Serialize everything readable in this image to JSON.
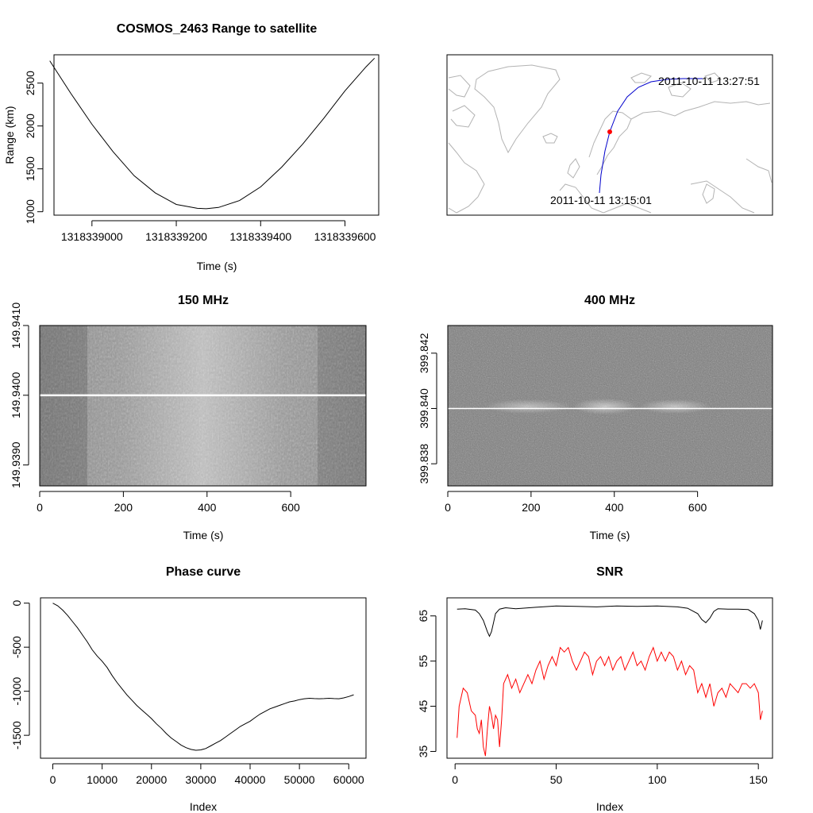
{
  "chart_data": [
    {
      "id": "range",
      "type": "line",
      "title": "COSMOS_2463 Range to satellite",
      "xlabel": "Time (s)",
      "ylabel": "Range (km)",
      "xlim": [
        1318338910,
        1318339680
      ],
      "ylim": [
        960,
        2830
      ],
      "x_ticks": [
        1318339000,
        1318339200,
        1318339400,
        1318339600
      ],
      "x_tick_labels": [
        "1318339000",
        "1318339200",
        "1318339400",
        "1318339600"
      ],
      "y_ticks": [
        1000,
        1500,
        2000,
        2500
      ],
      "y_tick_labels": [
        "1000",
        "1500",
        "2000",
        "2500"
      ],
      "series": [
        {
          "color": "#000000",
          "x": [
            1318338900,
            1318338950,
            1318339000,
            1318339050,
            1318339100,
            1318339150,
            1318339200,
            1318339250,
            1318339271,
            1318339300,
            1318339350,
            1318339400,
            1318339450,
            1318339500,
            1318339550,
            1318339600,
            1318339650,
            1318339670
          ],
          "y": [
            2760,
            2380,
            2020,
            1700,
            1420,
            1220,
            1085,
            1040,
            1035,
            1050,
            1130,
            1290,
            1520,
            1790,
            2090,
            2410,
            2690,
            2790
          ]
        }
      ]
    },
    {
      "id": "map",
      "type": "map",
      "annotations": [
        "2011-10-11 13:27:51",
        "2011-10-11 13:15:01"
      ],
      "track_color": "#0000cc",
      "marker_color": "#ff0000",
      "coast_color": "#b3b3b3"
    },
    {
      "id": "spec150",
      "type": "heatmap",
      "title": "150 MHz",
      "xlabel": "Time (s)",
      "ylabel": "",
      "xlim": [
        0,
        780
      ],
      "ylim": [
        149.9387,
        149.941
      ],
      "x_ticks": [
        0,
        200,
        400,
        600
      ],
      "x_tick_labels": [
        "0",
        "200",
        "400",
        "600"
      ],
      "y_ticks": [
        149.939,
        149.94,
        149.941
      ],
      "y_tick_labels": [
        "149.9390",
        "149.9400",
        "149.9410"
      ],
      "signal_freq": 149.94
    },
    {
      "id": "spec400",
      "type": "heatmap",
      "title": "400 MHz",
      "xlabel": "Time (s)",
      "ylabel": "",
      "xlim": [
        0,
        780
      ],
      "ylim": [
        399.8372,
        399.843
      ],
      "x_ticks": [
        0,
        200,
        400,
        600
      ],
      "x_tick_labels": [
        "0",
        "200",
        "400",
        "600"
      ],
      "y_ticks": [
        399.838,
        399.84,
        399.842
      ],
      "y_tick_labels": [
        "399.838",
        "399.840",
        "399.842"
      ],
      "signal_freq": 399.84
    },
    {
      "id": "phase",
      "type": "line",
      "title": "Phase curve",
      "xlabel": "Index",
      "ylabel": "",
      "xlim": [
        -2500,
        63500
      ],
      "ylim": [
        -1760,
        60
      ],
      "x_ticks": [
        0,
        10000,
        20000,
        30000,
        40000,
        50000,
        60000
      ],
      "x_tick_labels": [
        "0",
        "10000",
        "20000",
        "30000",
        "40000",
        "50000",
        "60000"
      ],
      "y_ticks": [
        0,
        -500,
        -1000,
        -1500
      ],
      "y_tick_labels": [
        "0",
        "-500",
        "-1000",
        "-1500"
      ],
      "series": [
        {
          "color": "#000000",
          "x": [
            0,
            1000,
            2000,
            3000,
            4000,
            5000,
            6000,
            7000,
            8000,
            9000,
            10000,
            11000,
            12000,
            13000,
            14000,
            15000,
            16000,
            17000,
            18000,
            19000,
            20000,
            21000,
            22000,
            23000,
            24000,
            25000,
            26000,
            27000,
            28000,
            29000,
            30000,
            31000,
            32000,
            33000,
            34000,
            35000,
            36000,
            37000,
            38000,
            39000,
            40000,
            41000,
            42000,
            43000,
            44000,
            45000,
            46000,
            47000,
            48000,
            49000,
            50000,
            51000,
            52000,
            53000,
            54000,
            55000,
            56000,
            57000,
            58000,
            59000,
            60000,
            61000
          ],
          "y": [
            0,
            -30,
            -80,
            -140,
            -210,
            -280,
            -360,
            -440,
            -530,
            -600,
            -660,
            -730,
            -820,
            -900,
            -970,
            -1040,
            -1100,
            -1160,
            -1210,
            -1260,
            -1310,
            -1370,
            -1420,
            -1480,
            -1530,
            -1570,
            -1610,
            -1640,
            -1660,
            -1670,
            -1665,
            -1650,
            -1620,
            -1590,
            -1560,
            -1520,
            -1480,
            -1440,
            -1400,
            -1370,
            -1340,
            -1300,
            -1260,
            -1230,
            -1200,
            -1180,
            -1160,
            -1140,
            -1120,
            -1110,
            -1095,
            -1085,
            -1080,
            -1083,
            -1085,
            -1083,
            -1080,
            -1083,
            -1085,
            -1075,
            -1060,
            -1040
          ]
        }
      ]
    },
    {
      "id": "snr",
      "type": "line",
      "title": "SNR",
      "xlabel": "Index",
      "ylabel": "",
      "xlim": [
        -4,
        157
      ],
      "ylim": [
        33.5,
        69
      ],
      "x_ticks": [
        0,
        50,
        100,
        150
      ],
      "x_tick_labels": [
        "0",
        "50",
        "100",
        "150"
      ],
      "y_ticks": [
        35,
        45,
        55,
        65
      ],
      "y_tick_labels": [
        "35",
        "45",
        "55",
        "65"
      ],
      "series": [
        {
          "color": "#000000",
          "x": [
            1,
            5,
            10,
            12,
            14,
            16,
            17,
            18,
            19,
            20,
            22,
            25,
            30,
            40,
            50,
            60,
            70,
            80,
            90,
            100,
            110,
            115,
            120,
            122,
            124,
            126,
            128,
            130,
            135,
            140,
            145,
            148,
            150,
            151,
            152
          ],
          "y": [
            66.5,
            66.6,
            66.3,
            65.5,
            64,
            61.5,
            60.5,
            61.5,
            63.5,
            65.5,
            66.5,
            66.8,
            66.6,
            66.9,
            67.2,
            67.1,
            67,
            67.2,
            67.1,
            67.2,
            67,
            66.7,
            65.5,
            64.2,
            63.5,
            64.5,
            66,
            66.6,
            66.5,
            66.5,
            66.4,
            65.5,
            64,
            62,
            64
          ]
        },
        {
          "color": "#ff0000",
          "x": [
            1,
            2,
            4,
            6,
            8,
            10,
            11,
            12,
            13,
            14,
            15,
            16,
            17,
            18,
            19,
            20,
            21,
            22,
            23,
            24,
            26,
            28,
            30,
            32,
            34,
            36,
            38,
            40,
            42,
            44,
            46,
            48,
            50,
            52,
            54,
            56,
            58,
            60,
            62,
            64,
            66,
            68,
            70,
            72,
            74,
            76,
            78,
            80,
            82,
            84,
            86,
            88,
            90,
            92,
            94,
            96,
            98,
            100,
            102,
            104,
            106,
            108,
            110,
            112,
            114,
            116,
            118,
            120,
            122,
            124,
            126,
            128,
            130,
            132,
            134,
            136,
            138,
            140,
            142,
            144,
            146,
            148,
            150,
            151,
            152
          ],
          "y": [
            38,
            45,
            49,
            48,
            44,
            43,
            40,
            39,
            42,
            36,
            34,
            40,
            45,
            43,
            40,
            43,
            42,
            36,
            42,
            50,
            52,
            49,
            51,
            48,
            50,
            52,
            50,
            53,
            55,
            51,
            54,
            56,
            54,
            58,
            57,
            58,
            55,
            53,
            55,
            57,
            56,
            52,
            55,
            56,
            54,
            56,
            53,
            55,
            56,
            53,
            55,
            57,
            54,
            55,
            53,
            56,
            58,
            55,
            57,
            55,
            57,
            56,
            53,
            55,
            52,
            54,
            53,
            48,
            50,
            47,
            50,
            45,
            48,
            49,
            47,
            50,
            49,
            48,
            50,
            50,
            49,
            50,
            48,
            42,
            44
          ]
        }
      ]
    }
  ]
}
